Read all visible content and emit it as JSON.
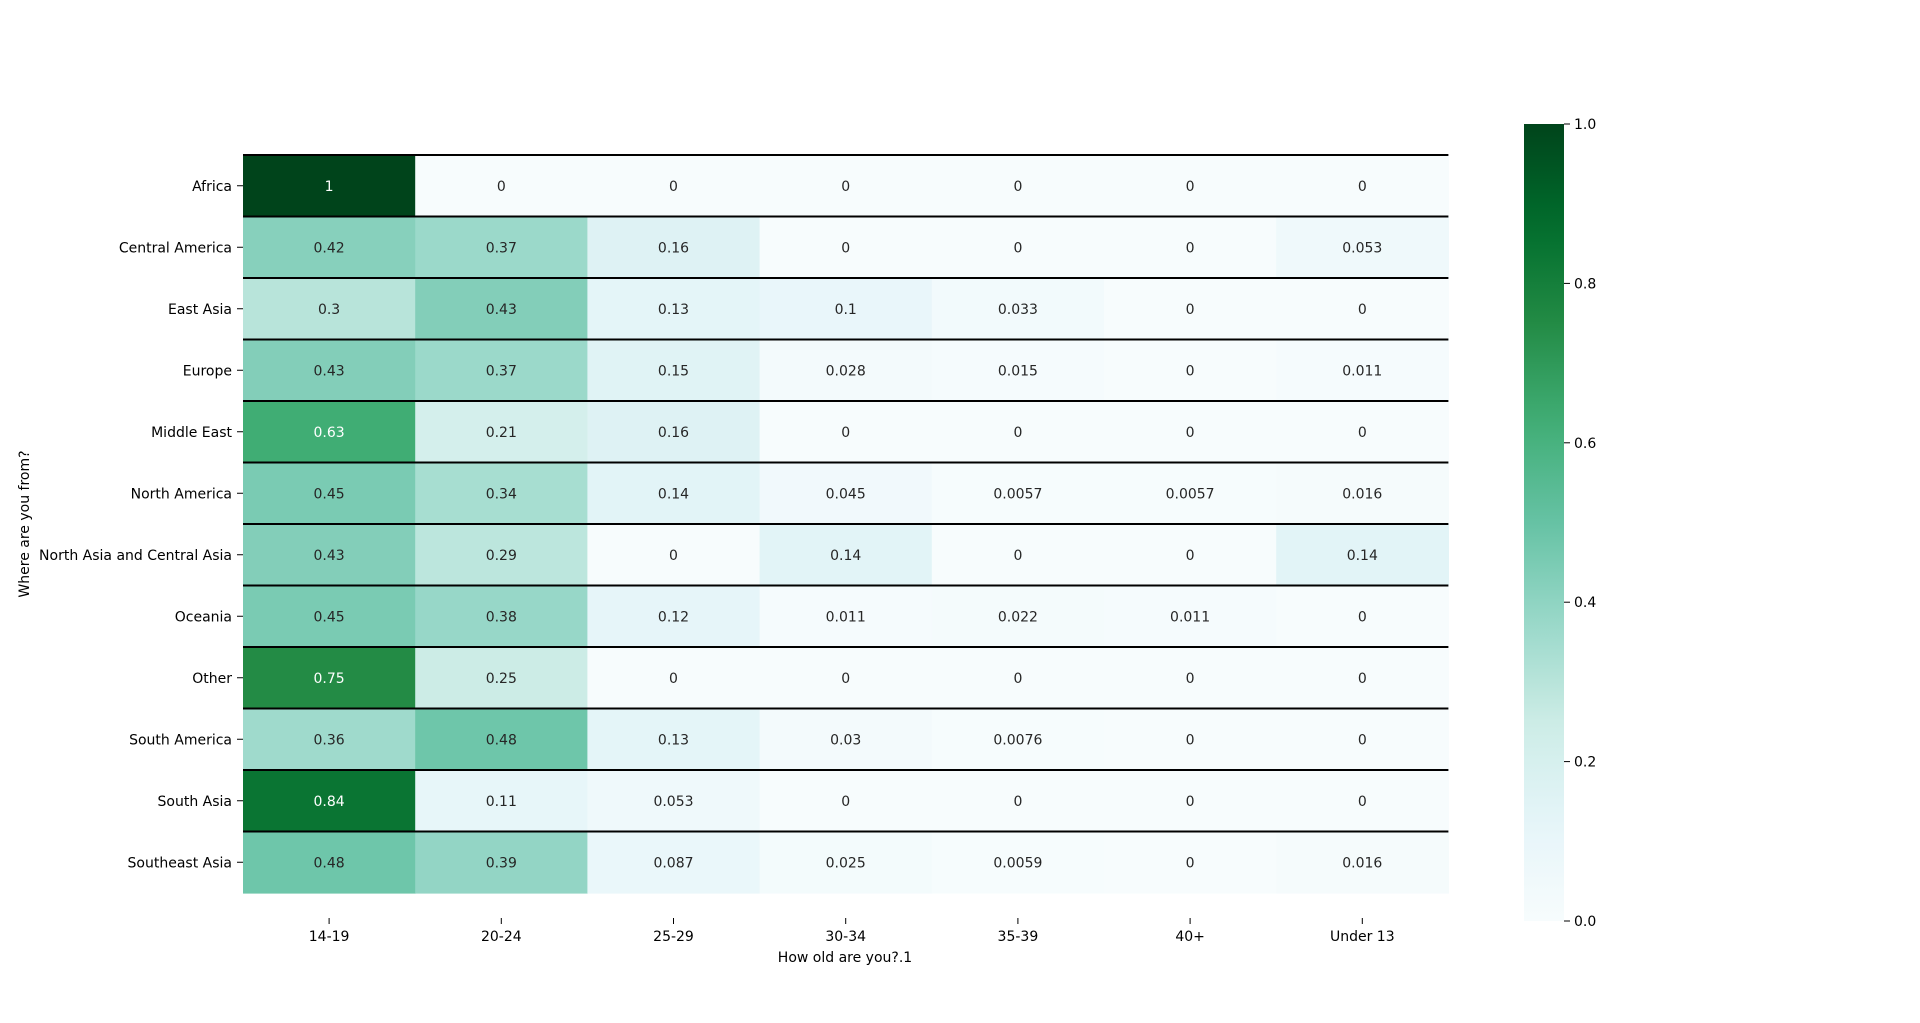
{
  "chart_data": {
    "type": "heatmap",
    "title": "",
    "xlabel": "How old are you?.1",
    "ylabel": "Where are you from?",
    "x_categories": [
      "14-19",
      "20-24",
      "25-29",
      "30-34",
      "35-39",
      "40+",
      "Under 13"
    ],
    "y_categories": [
      "Africa",
      "Central America",
      "East Asia",
      "Europe",
      "Middle East",
      "North America",
      "North Asia and Central Asia",
      "Oceania",
      "Other",
      "South America",
      "South Asia",
      "Southeast Asia"
    ],
    "values": [
      [
        1,
        0,
        0,
        0,
        0,
        0,
        0
      ],
      [
        0.42,
        0.37,
        0.16,
        0,
        0,
        0,
        0.053
      ],
      [
        0.3,
        0.43,
        0.13,
        0.1,
        0.033,
        0,
        0
      ],
      [
        0.43,
        0.37,
        0.15,
        0.028,
        0.015,
        0,
        0.011
      ],
      [
        0.63,
        0.21,
        0.16,
        0,
        0,
        0,
        0
      ],
      [
        0.45,
        0.34,
        0.14,
        0.045,
        0.0057,
        0.0057,
        0.016
      ],
      [
        0.43,
        0.29,
        0,
        0.14,
        0,
        0,
        0.14
      ],
      [
        0.45,
        0.38,
        0.12,
        0.011,
        0.022,
        0.011,
        0
      ],
      [
        0.75,
        0.25,
        0,
        0,
        0,
        0,
        0
      ],
      [
        0.36,
        0.48,
        0.13,
        0.03,
        0.0076,
        0,
        0
      ],
      [
        0.84,
        0.11,
        0.053,
        0,
        0,
        0,
        0
      ],
      [
        0.48,
        0.39,
        0.087,
        0.025,
        0.0059,
        0,
        0.016
      ]
    ],
    "colormap": "Greens (BuGn)",
    "colorbar": {
      "range": [
        0,
        1
      ],
      "ticks": [
        "0.0",
        "0.2",
        "0.4",
        "0.6",
        "0.8",
        "1.0"
      ]
    },
    "row_separators": true
  }
}
